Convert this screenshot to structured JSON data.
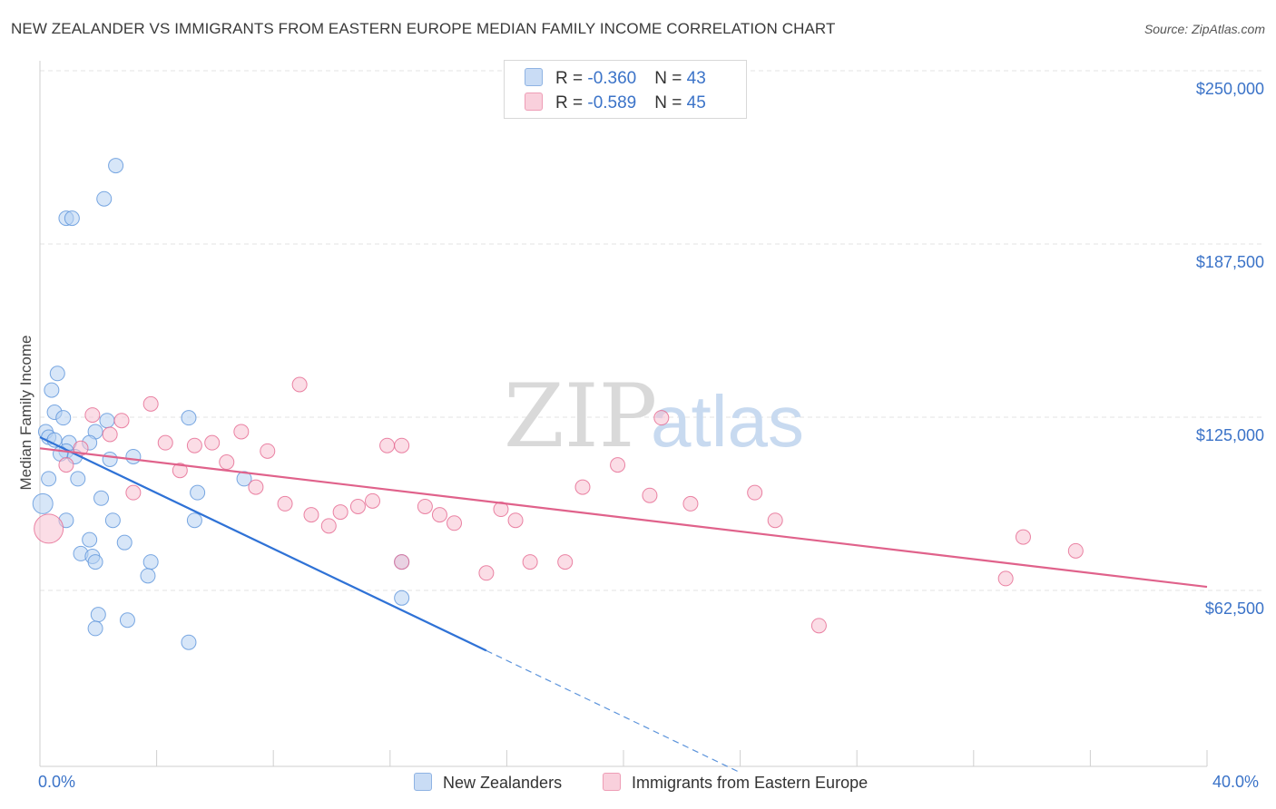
{
  "title": "NEW ZEALANDER VS IMMIGRANTS FROM EASTERN EUROPE MEDIAN FAMILY INCOME CORRELATION CHART",
  "source": "Source: ZipAtlas.com",
  "watermark": {
    "zip": "ZIP",
    "atlas": "atlas"
  },
  "stats_legend": [
    {
      "r_label": "R = ",
      "r_value": "-0.360",
      "n_label": "N = ",
      "n_value": "43",
      "color": "#a9c7ee"
    },
    {
      "r_label": "R = ",
      "r_value": "-0.589",
      "n_label": "N = ",
      "n_value": "45",
      "color": "#f4b7c9"
    }
  ],
  "bottom_legend": [
    {
      "label": "New Zealanders",
      "color": "#a9c7ee"
    },
    {
      "label": "Immigrants from Eastern Europe",
      "color": "#f4b7c9"
    }
  ],
  "x_min_label": "0.0%",
  "x_max_label": "40.0%",
  "chart_data": {
    "type": "scatter",
    "title": "NEW ZEALANDER VS IMMIGRANTS FROM EASTERN EUROPE MEDIAN FAMILY INCOME CORRELATION CHART",
    "xlabel": "",
    "ylabel": "Median Family Income",
    "xlim": [
      0,
      40
    ],
    "ylim": [
      0,
      250000
    ],
    "y_ticks": [
      62500,
      125000,
      187500,
      250000
    ],
    "y_tick_labels": [
      "$62,500",
      "$125,000",
      "$187,500",
      "$250,000"
    ],
    "grid": true,
    "series": [
      {
        "name": "New Zealanders",
        "color": "#5b93db",
        "fill": "#b7d1f2",
        "trend": {
          "x0": 0,
          "y0": 124000,
          "x1": 15.3,
          "y1": 47000,
          "dash_to_x": 24.0,
          "dash_to_y": 3000
        },
        "points": [
          [
            2.6,
            222000
          ],
          [
            2.2,
            210000
          ],
          [
            0.9,
            203000
          ],
          [
            1.1,
            203000
          ],
          [
            0.6,
            147000
          ],
          [
            0.4,
            141000
          ],
          [
            0.5,
            133000
          ],
          [
            0.8,
            131000
          ],
          [
            2.3,
            130000
          ],
          [
            5.1,
            131000
          ],
          [
            0.2,
            126000
          ],
          [
            1.9,
            126000
          ],
          [
            0.3,
            124000
          ],
          [
            0.5,
            123000
          ],
          [
            1.0,
            122000
          ],
          [
            1.7,
            122000
          ],
          [
            0.9,
            119000
          ],
          [
            0.7,
            118000
          ],
          [
            1.2,
            117000
          ],
          [
            3.2,
            117000
          ],
          [
            2.4,
            116000
          ],
          [
            0.3,
            109000
          ],
          [
            1.3,
            109000
          ],
          [
            5.4,
            104000
          ],
          [
            7.0,
            109000
          ],
          [
            2.1,
            102000
          ],
          [
            0.1,
            100000
          ],
          [
            0.9,
            94000
          ],
          [
            2.5,
            94000
          ],
          [
            5.3,
            94000
          ],
          [
            1.7,
            87000
          ],
          [
            2.9,
            86000
          ],
          [
            1.4,
            82000
          ],
          [
            1.8,
            81000
          ],
          [
            1.9,
            79000
          ],
          [
            3.8,
            79000
          ],
          [
            12.4,
            79000
          ],
          [
            3.7,
            74000
          ],
          [
            2.0,
            60000
          ],
          [
            3.0,
            58000
          ],
          [
            1.9,
            55000
          ],
          [
            5.1,
            50000
          ],
          [
            12.4,
            66000
          ]
        ]
      },
      {
        "name": "Immigrants from Eastern Europe",
        "color": "#e5678f",
        "fill": "#f7c1d1",
        "trend": {
          "x0": 0,
          "y0": 120000,
          "x1": 40,
          "y1": 70000
        },
        "points": [
          [
            0.3,
            91000
          ],
          [
            0.9,
            114000
          ],
          [
            1.4,
            120000
          ],
          [
            1.8,
            132000
          ],
          [
            2.4,
            125000
          ],
          [
            2.8,
            130000
          ],
          [
            3.2,
            104000
          ],
          [
            3.8,
            136000
          ],
          [
            4.3,
            122000
          ],
          [
            4.8,
            112000
          ],
          [
            5.3,
            121000
          ],
          [
            5.9,
            122000
          ],
          [
            6.4,
            115000
          ],
          [
            6.9,
            126000
          ],
          [
            7.4,
            106000
          ],
          [
            7.8,
            119000
          ],
          [
            8.4,
            100000
          ],
          [
            8.9,
            143000
          ],
          [
            9.3,
            96000
          ],
          [
            9.9,
            92000
          ],
          [
            10.3,
            97000
          ],
          [
            10.9,
            99000
          ],
          [
            11.4,
            101000
          ],
          [
            11.9,
            121000
          ],
          [
            12.4,
            79000
          ],
          [
            12.4,
            121000
          ],
          [
            13.2,
            99000
          ],
          [
            13.7,
            96000
          ],
          [
            14.2,
            93000
          ],
          [
            15.3,
            75000
          ],
          [
            15.8,
            98000
          ],
          [
            16.3,
            94000
          ],
          [
            16.8,
            79000
          ],
          [
            18.0,
            79000
          ],
          [
            18.6,
            106000
          ],
          [
            19.8,
            114000
          ],
          [
            20.9,
            103000
          ],
          [
            21.3,
            131000
          ],
          [
            22.3,
            100000
          ],
          [
            24.5,
            104000
          ],
          [
            25.2,
            94000
          ],
          [
            26.7,
            56000
          ],
          [
            33.1,
            73000
          ],
          [
            33.7,
            88000
          ],
          [
            35.5,
            83000
          ]
        ]
      }
    ]
  }
}
